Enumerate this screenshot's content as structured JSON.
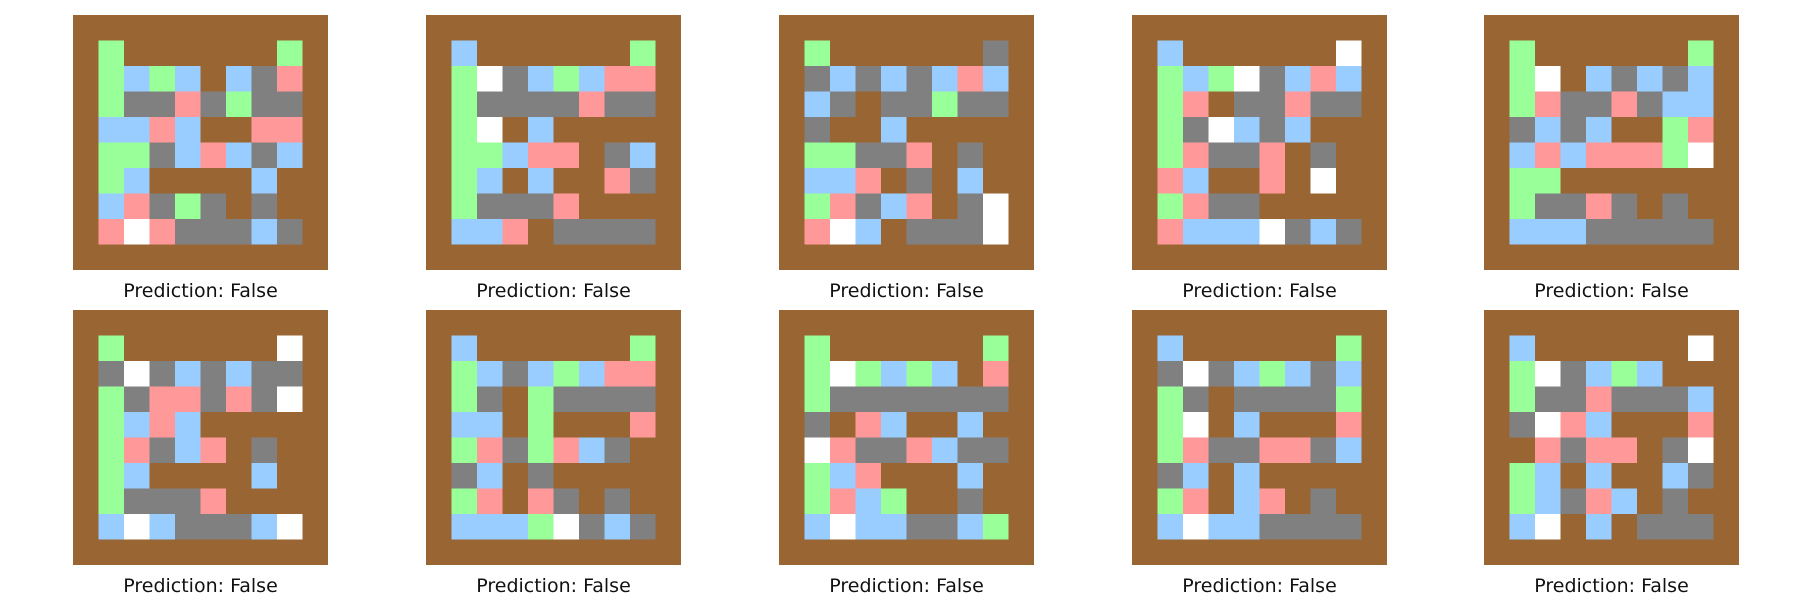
{
  "colors": {
    "W": "#996633",
    "G": "#99ff99",
    "B": "#99ccff",
    "R": "#ff9999",
    "X": "#808080",
    "H": "#ffffff"
  },
  "panels": [
    {
      "caption": "Prediction: False",
      "grid": [
        "WWWWWWWWWW",
        "WGWWWWWWGW",
        "WGBGBWBXRW",
        "WGXXRXGXXW",
        "WBBRBWWRRW",
        "WGGXBRBXBW",
        "WGBWWWWBWW",
        "WBRXGXWXWW",
        "WRHRXXXBXW",
        "WWWWWWWWWW"
      ]
    },
    {
      "caption": "Prediction: False",
      "grid": [
        "WWWWWWWWWW",
        "WBWWWWWWGW",
        "WGHXBGBRRW",
        "WGXXXXRXXW",
        "WGHWBWWWWW",
        "WGGBRRWXBW",
        "WGBWBWWRXW",
        "WGXXXRWWWW",
        "WBBRWXXXXW",
        "WWWWWWWWWW"
      ]
    },
    {
      "caption": "Prediction: False",
      "grid": [
        "WWWWWWWWWW",
        "WGWWWWWWXW",
        "WXBXBXBRBW",
        "WBXWXXGXXW",
        "WXWWBWWWWW",
        "WGGXXRWXWW",
        "WBBRWXWBWW",
        "WGRXBRWXHW",
        "WRHBWXXXHW",
        "WWWWWWWWWW"
      ]
    },
    {
      "caption": "Prediction: False",
      "grid": [
        "WWWWWWWWWW",
        "WBWWWWWWHW",
        "WGBGHXBRBW",
        "WGRWXXRXXW",
        "WGXHBXBWWW",
        "WGRXXRWXWW",
        "WRBWWRWHWW",
        "WGRXXWWWWW",
        "WRBBBHXBXW",
        "WWWWWWWWWW"
      ]
    },
    {
      "caption": "Prediction: False",
      "grid": [
        "WWWWWWWWWW",
        "WGWWWWWWGW",
        "WGHWBXBXBW",
        "WGRXXRXBBW",
        "WXBXBWWGRW",
        "WBRBRRRGHW",
        "WGGWWWWWWW",
        "WGXXRXWXWW",
        "WBBBXXXXXW",
        "WWWWWWWWWW"
      ]
    },
    {
      "caption": "Prediction: False",
      "grid": [
        "WWWWWWWWWW",
        "WGWWWWWWHW",
        "WXHXBXBXXW",
        "WGXRRXRXHW",
        "WGBRBWWWWW",
        "WGRXBRWXWW",
        "WGBWWWWBWW",
        "WGXXXRWWWW",
        "WBHBXXXBHW",
        "WWWWWWWWWW"
      ]
    },
    {
      "caption": "Prediction: False",
      "grid": [
        "WWWWWWWWWW",
        "WBWWWWWWGW",
        "WGBXBGBRRW",
        "WGXWGXXXXW",
        "WBBWGWWWRW",
        "WGRXGRBXWW",
        "WXBWXWWWWW",
        "WGRWRXWXWW",
        "WBBBGHXBXW",
        "WWWWWWWWWW"
      ]
    },
    {
      "caption": "Prediction: False",
      "grid": [
        "WWWWWWWWWW",
        "WGWWWWWWGW",
        "WGHGBGBWRW",
        "WGXXXXXXXW",
        "WXWRBWWBWW",
        "WHRXXRBXXW",
        "WGBRWWWBWW",
        "WGRBGWWXWW",
        "WBHBBXXBGW",
        "WWWWWWWWWW"
      ]
    },
    {
      "caption": "Prediction: False",
      "grid": [
        "WWWWWWWWWW",
        "WBWWWWWWGW",
        "WXHXBGBXBW",
        "WGXWXXXXGW",
        "WGHWBWWWRW",
        "WGRXXRRXBW",
        "WXBWBWWWWW",
        "WGRWBRWXWW",
        "WBHBBXXXXW",
        "WWWWWWWWWW"
      ]
    },
    {
      "caption": "Prediction: False",
      "grid": [
        "WWWWWWWWWW",
        "WBWWWWWWHW",
        "WGHXBGBWWW",
        "WGXXRXXXBW",
        "WXHRBWWWRW",
        "WWRXRRWXHW",
        "WGBWBWWBXW",
        "WGBXRBWXWW",
        "WBHWBWXXXW",
        "WWWWWWWWWW"
      ]
    }
  ]
}
